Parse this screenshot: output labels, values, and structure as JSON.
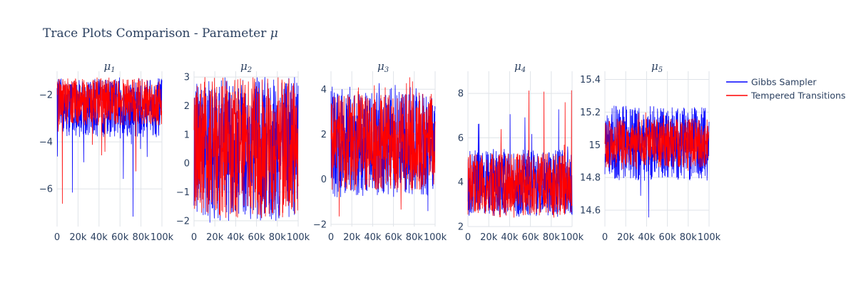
{
  "chart_data": {
    "type": "line",
    "title_prefix": "Trace Plots Comparison - Parameter ",
    "title_symbol": "μ",
    "legend_placement": "top-right",
    "grid": true,
    "series_meta": [
      {
        "name": "Gibbs Sampler",
        "color": "#0000ff"
      },
      {
        "name": "Tempered Transitions",
        "color": "#ff0000"
      }
    ],
    "subplots": [
      {
        "title": "μ",
        "subscript": "1",
        "xlim": [
          0,
          100000
        ],
        "ylim": [
          -7.6,
          -1.0
        ],
        "xticks": [
          0,
          20000,
          40000,
          60000,
          80000,
          100000
        ],
        "xtick_labels": [
          "0",
          "20k",
          "40k",
          "60k",
          "80k",
          "100k"
        ],
        "yticks": [
          -2,
          -4,
          -6
        ],
        "ytick_labels": [
          "−2",
          "−4",
          "−6"
        ],
        "series": [
          {
            "name": "Gibbs Sampler",
            "band": [
              -3.8,
              -1.3
            ],
            "min": -7.3,
            "max": -1.25
          },
          {
            "name": "Tempered Transitions",
            "band": [
              -3.3,
              -1.3
            ],
            "min": -7.3,
            "max": -1.25
          }
        ]
      },
      {
        "title": "μ",
        "subscript": "2",
        "xlim": [
          0,
          100000
        ],
        "ylim": [
          -2.2,
          3.2
        ],
        "xticks": [
          0,
          20000,
          40000,
          60000,
          80000,
          100000
        ],
        "xtick_labels": [
          "0",
          "20k",
          "40k",
          "60k",
          "80k",
          "100k"
        ],
        "yticks": [
          3,
          2,
          1,
          0,
          -1,
          -2
        ],
        "ytick_labels": [
          "3",
          "2",
          "1",
          "0",
          "−1",
          "−2"
        ],
        "series": [
          {
            "name": "Gibbs Sampler",
            "band": [
              -2.0,
              2.9
            ],
            "min": -2.15,
            "max": 3.0
          },
          {
            "name": "Tempered Transitions",
            "band": [
              -1.85,
              2.95
            ],
            "min": -1.9,
            "max": 3.0
          }
        ]
      },
      {
        "title": "μ",
        "subscript": "3",
        "xlim": [
          0,
          100000
        ],
        "ylim": [
          -2.1,
          4.8
        ],
        "xticks": [
          0,
          20000,
          40000,
          60000,
          80000,
          100000
        ],
        "xtick_labels": [
          "0",
          "20k",
          "40k",
          "60k",
          "80k",
          "100k"
        ],
        "yticks": [
          4,
          2,
          0,
          -2
        ],
        "ytick_labels": [
          "4",
          "2",
          "0",
          "−2"
        ],
        "series": [
          {
            "name": "Gibbs Sampler",
            "band": [
              -0.8,
              3.9
            ],
            "min": -1.5,
            "max": 4.3
          },
          {
            "name": "Tempered Transitions",
            "band": [
              -0.5,
              3.8
            ],
            "min": -1.8,
            "max": 4.6
          }
        ]
      },
      {
        "title": "μ",
        "subscript": "4",
        "xlim": [
          0,
          100000
        ],
        "ylim": [
          2.0,
          9.0
        ],
        "xticks": [
          0,
          20000,
          40000,
          60000,
          80000,
          100000
        ],
        "xtick_labels": [
          "0",
          "20k",
          "40k",
          "60k",
          "80k",
          "100k"
        ],
        "yticks": [
          8,
          6,
          4,
          2
        ],
        "ytick_labels": [
          "8",
          "6",
          "4",
          "2"
        ],
        "series": [
          {
            "name": "Gibbs Sampler",
            "band": [
              2.5,
              5.5
            ],
            "min": 2.4,
            "max": 8.6
          },
          {
            "name": "Tempered Transitions",
            "band": [
              2.5,
              5.3
            ],
            "min": 2.4,
            "max": 8.3
          }
        ]
      },
      {
        "title": "μ",
        "subscript": "5",
        "xlim": [
          0,
          100000
        ],
        "ylim": [
          14.5,
          15.45
        ],
        "xticks": [
          0,
          20000,
          40000,
          60000,
          80000,
          100000
        ],
        "xtick_labels": [
          "0",
          "20k",
          "40k",
          "60k",
          "80k",
          "100k"
        ],
        "yticks": [
          15.4,
          15.2,
          15,
          14.8,
          14.6
        ],
        "ytick_labels": [
          "15.4",
          "15.2",
          "15",
          "14.8",
          "14.6"
        ],
        "series": [
          {
            "name": "Gibbs Sampler",
            "band": [
              14.78,
              15.24
            ],
            "min": 14.55,
            "max": 15.4
          },
          {
            "name": "Tempered Transitions",
            "band": [
              14.86,
              15.16
            ],
            "min": 14.84,
            "max": 15.2
          }
        ]
      }
    ]
  }
}
